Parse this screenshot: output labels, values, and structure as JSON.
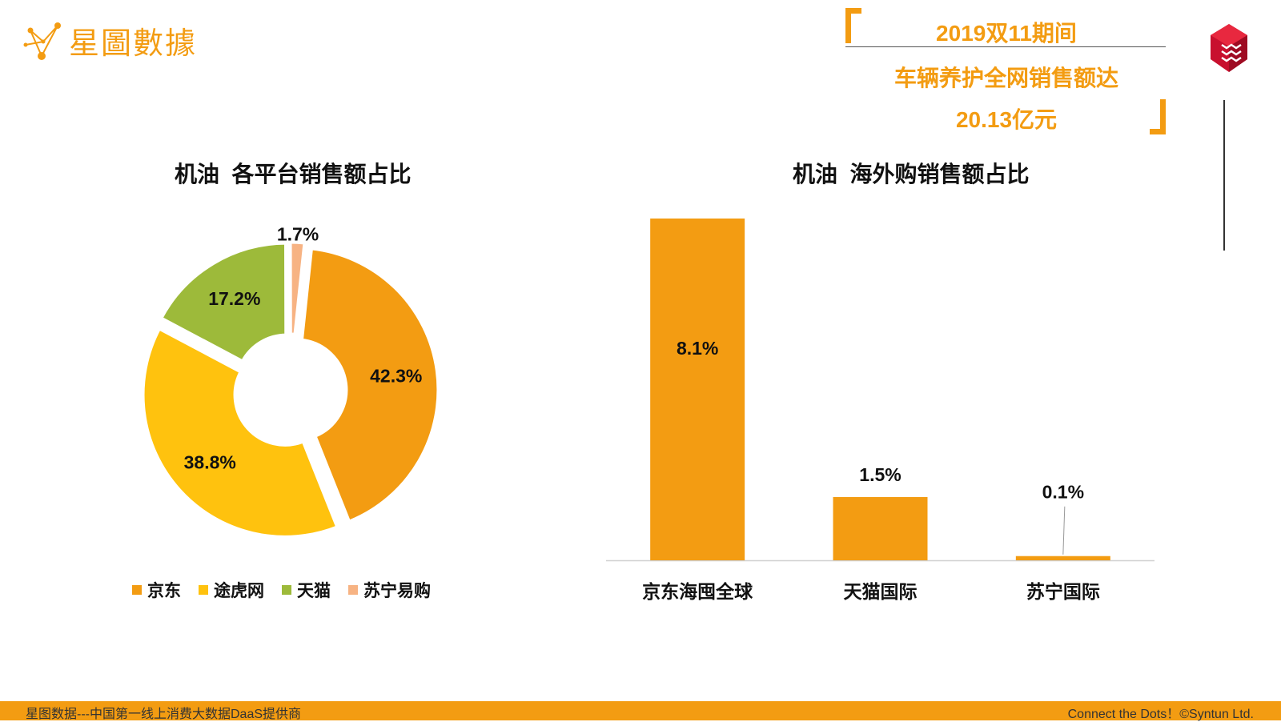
{
  "logo": {
    "text": "星圖數據",
    "icon": "constellation-dots-icon",
    "color": "#f39c12"
  },
  "headline": {
    "line1": "2019双11期间",
    "line2": "车辆养护全网销售额达",
    "line3": "20.13亿元",
    "color": "#f39c12"
  },
  "badge": {
    "icon": "red-cube-logo-icon",
    "color": "#c8102e"
  },
  "chart_data": [
    {
      "type": "pie",
      "title": "机油  各平台销售额占比",
      "donut": true,
      "labels": [
        "京东",
        "途虎网",
        "天猫",
        "苏宁易购"
      ],
      "values": [
        42.3,
        38.8,
        17.2,
        1.7
      ],
      "value_labels": [
        "42.3%",
        "38.8%",
        "17.2%",
        "1.7%"
      ],
      "colors": [
        "#f39c12",
        "#ffc20e",
        "#9dba3a",
        "#f7b383"
      ],
      "legend_position": "bottom"
    },
    {
      "type": "bar",
      "title": "机油  海外购销售额占比",
      "categories": [
        "京东海囤全球",
        "天猫国际",
        "苏宁国际"
      ],
      "values": [
        8.1,
        1.5,
        0.1
      ],
      "value_labels": [
        "8.1%",
        "1.5%",
        "0.1%"
      ],
      "color": "#f39c12",
      "ylim": [
        0,
        8.1
      ]
    }
  ],
  "footer": {
    "left": "星图数据---中国第一线上消费大数据DaaS提供商",
    "right": "Connect the Dots！©Syntun Ltd.",
    "color": "#f39c12"
  }
}
